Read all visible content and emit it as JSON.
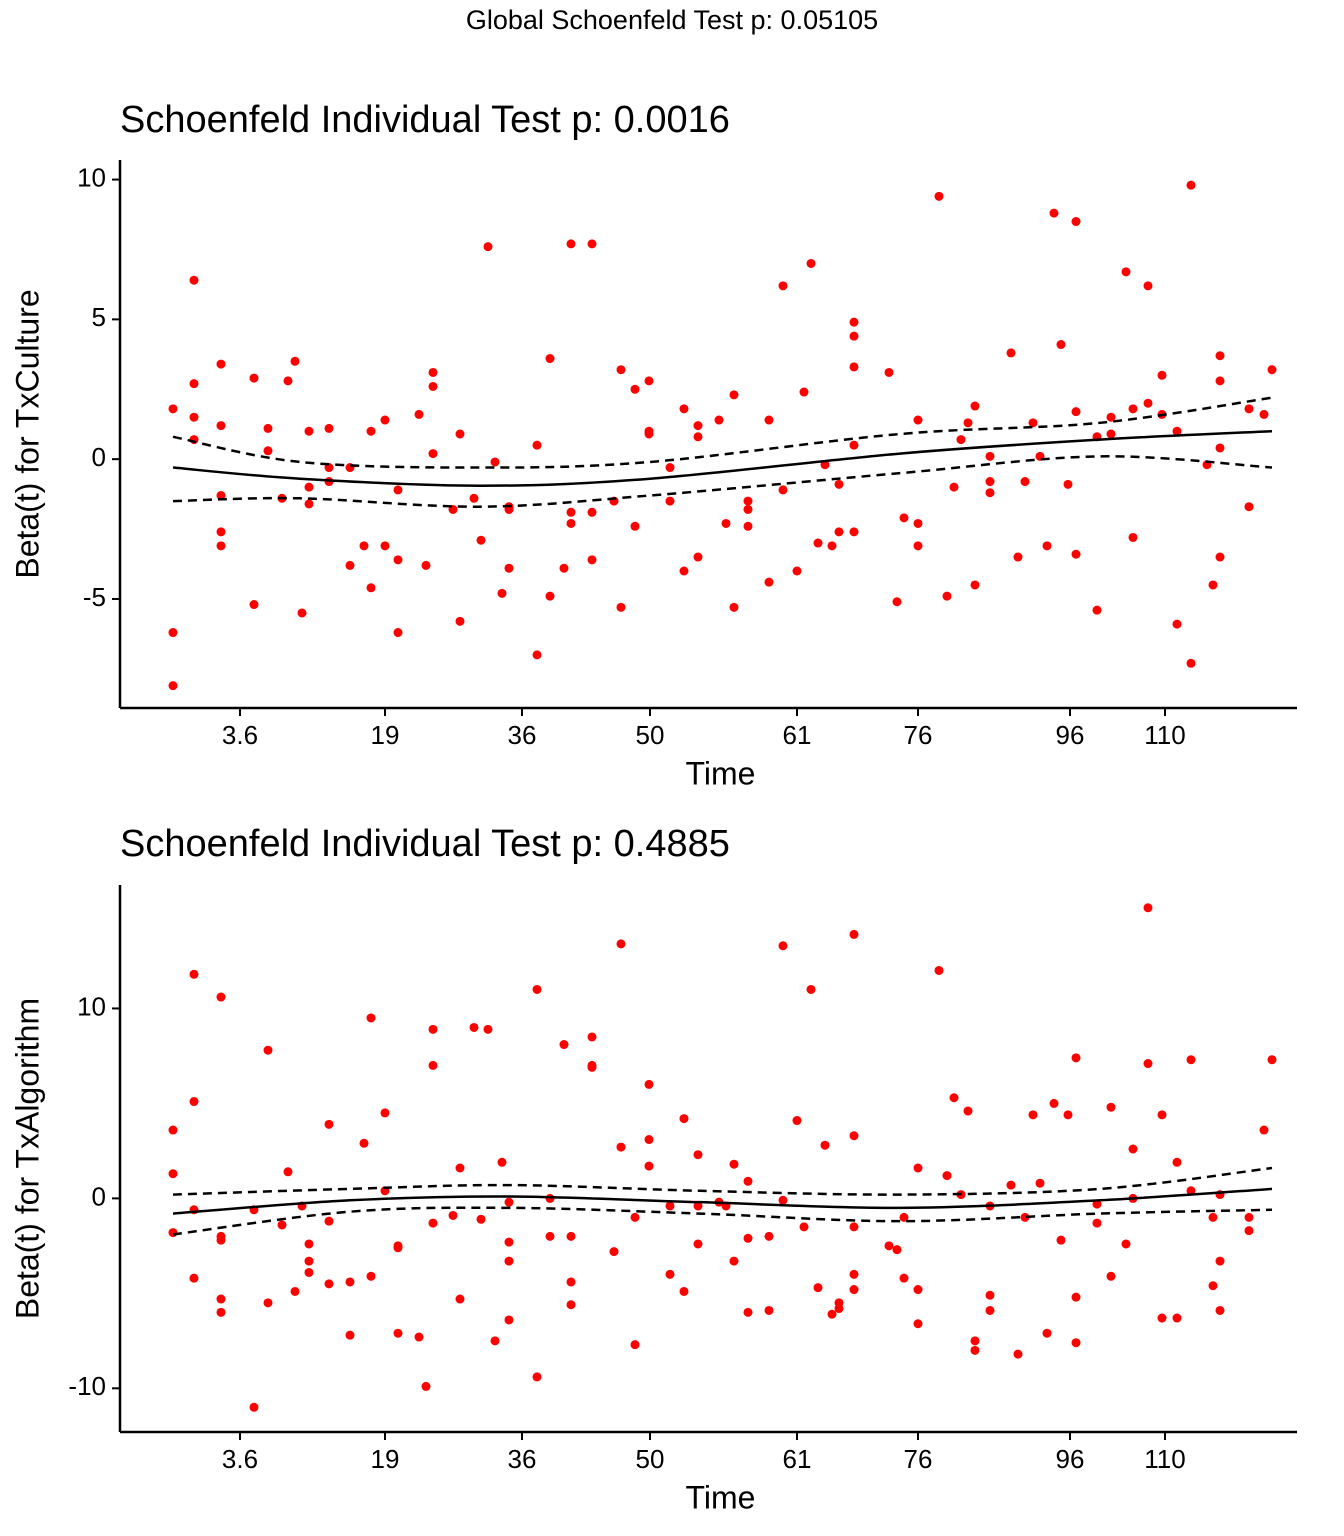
{
  "title": "Global Schoenfeld Test p: 0.05105",
  "chart_data": [
    {
      "type": "scatter",
      "title": "Schoenfeld Individual Test p: 0.0016",
      "xlabel": "Time",
      "ylabel": "Beta(t) for TxCulture",
      "color": "#ff0000",
      "xlim": [
        0,
        117.7
      ],
      "xticks": [
        {
          "value": 12,
          "label": "3.6"
        },
        {
          "value": 26.5,
          "label": "19"
        },
        {
          "value": 40.2,
          "label": "36"
        },
        {
          "value": 53,
          "label": "50"
        },
        {
          "value": 67.7,
          "label": "61"
        },
        {
          "value": 79.8,
          "label": "76"
        },
        {
          "value": 95,
          "label": "96"
        },
        {
          "value": 104.5,
          "label": "110"
        }
      ],
      "ylim": [
        -8.9,
        10.7
      ],
      "yticks": [
        -5,
        0,
        5,
        10
      ],
      "x": [
        5.3,
        7.4,
        10.1,
        13.4,
        14.8,
        16.2,
        16.8,
        17.5,
        18.2,
        18.9,
        20.9,
        23,
        24.4,
        25.1,
        26.5,
        27.8,
        29.9,
        30.6,
        31.3,
        33.3,
        34,
        35.4,
        36.1,
        36.8,
        37.5,
        38.2,
        38.9,
        41.7,
        43,
        44.4,
        45.1,
        47.2,
        49.4,
        50.1,
        51.5,
        52.9,
        55,
        56.4,
        57.8,
        59.9,
        60.6,
        61.4,
        62.8,
        64.9,
        66.3,
        67.7,
        68.4,
        69.1,
        69.8,
        70.5,
        71.2,
        71.9,
        73.4,
        76.9,
        77.7,
        78.4,
        79.8,
        81.9,
        82.7,
        83.4,
        84.1,
        84.8,
        85.5,
        87,
        89.1,
        89.8,
        90.5,
        91.3,
        92,
        92.7,
        93.4,
        94.1,
        94.8,
        95.6,
        97.7,
        99.1,
        100.6,
        101.3,
        102.8,
        104.2,
        105.7,
        107.1,
        108.7,
        109.3,
        110,
        112.9,
        114.4,
        115.2
      ],
      "values": [
        [
          1.8,
          -6.2,
          -8.1
        ],
        [
          6.4,
          2.7,
          1.5,
          0.7
        ],
        [
          3.4,
          1.2,
          -1.3,
          -2.6,
          -3.1
        ],
        [
          2.9,
          -5.2
        ],
        [
          1.1,
          0.3
        ],
        [
          -1.4
        ],
        [
          2.8
        ],
        [
          3.5
        ],
        [
          -5.5
        ],
        [
          1.0,
          -1.0,
          -1.6
        ],
        [
          1.1,
          -0.3,
          -0.8
        ],
        [
          -0.3,
          -3.8
        ],
        [
          -3.1
        ],
        [
          1.0,
          -4.6
        ],
        [
          1.4,
          -3.1
        ],
        [
          -1.1,
          -3.6,
          -6.2
        ],
        [
          1.6
        ],
        [
          -3.8
        ],
        [
          3.1,
          2.6,
          0.2
        ],
        [
          -1.8
        ],
        [
          0.9,
          -5.8
        ],
        [
          -1.4
        ],
        [
          -2.9
        ],
        [
          7.6
        ],
        [
          -0.1
        ],
        [
          -4.8
        ],
        [
          -1.7,
          -1.8,
          -3.9
        ],
        [
          0.5,
          -7.0
        ],
        [
          3.6,
          -4.9
        ],
        [
          -3.9
        ],
        [
          7.7,
          -1.9,
          -2.3
        ],
        [
          7.7,
          -1.9,
          -3.6
        ],
        [
          -1.5
        ],
        [
          3.2,
          -5.3
        ],
        [
          2.5,
          -2.4
        ],
        [
          2.8,
          1.0,
          0.9
        ],
        [
          -0.3,
          -1.5
        ],
        [
          1.8,
          -4.0
        ],
        [
          1.2,
          0.8,
          -3.5
        ],
        [
          1.4
        ],
        [
          -2.3
        ],
        [
          2.3,
          -5.3
        ],
        [
          -1.5,
          -1.8,
          -2.4
        ],
        [
          1.4,
          -4.4
        ],
        [
          6.2,
          -1.1
        ],
        [
          -4.0
        ],
        [
          2.4
        ],
        [
          7.0
        ],
        [
          -3.0
        ],
        [
          -0.2
        ],
        [
          -3.1
        ],
        [
          -0.9,
          -2.6
        ],
        [
          4.9,
          4.4,
          3.3,
          0.5,
          -2.6
        ],
        [
          3.1
        ],
        [
          -5.1
        ],
        [
          -2.1
        ],
        [
          1.4,
          -2.3,
          -3.1
        ],
        [
          9.4
        ],
        [
          -4.9
        ],
        [
          -1.0
        ],
        [
          0.7
        ],
        [
          1.3
        ],
        [
          1.9,
          -4.5
        ],
        [
          0.1,
          -0.8,
          -1.2
        ],
        [
          3.8
        ],
        [
          -3.5
        ],
        [
          -0.8
        ],
        [
          1.3
        ],
        [
          0.1
        ],
        [
          -3.1
        ],
        [
          8.8
        ],
        [
          4.1
        ],
        [
          -0.9
        ],
        [
          8.5,
          1.7,
          -3.4
        ],
        [
          0.8,
          -5.4
        ],
        [
          1.5,
          0.9
        ],
        [
          6.7
        ],
        [
          1.8,
          -2.8
        ],
        [
          6.2,
          2.0
        ],
        [
          3.0,
          1.6
        ],
        [
          1.0,
          -5.9
        ],
        [
          9.8,
          -7.3
        ],
        [
          -0.2
        ],
        [
          -4.5
        ],
        [
          3.7,
          2.8,
          0.4,
          -3.5
        ],
        [
          1.8,
          -1.7
        ],
        [
          1.6
        ],
        [
          3.2
        ]
      ],
      "fit": {
        "x": [
          5.3,
          18,
          36,
          53,
          78,
          98,
          115.2
        ],
        "values": [
          -0.3,
          -0.7,
          -0.95,
          -0.7,
          0.2,
          0.7,
          1.0
        ],
        "upper": [
          0.8,
          -0.1,
          -0.3,
          -0.1,
          0.9,
          1.3,
          2.2
        ],
        "lower": [
          -1.5,
          -1.4,
          -1.7,
          -1.3,
          -0.5,
          0.1,
          -0.3
        ]
      }
    },
    {
      "type": "scatter",
      "title": "Schoenfeld Individual Test p: 0.4885",
      "xlabel": "Time",
      "ylabel": "Beta(t) for TxAlgorithm",
      "color": "#ff0000",
      "xlim": [
        0,
        117.7
      ],
      "xticks": [
        {
          "value": 12,
          "label": "3.6"
        },
        {
          "value": 26.5,
          "label": "19"
        },
        {
          "value": 40.2,
          "label": "36"
        },
        {
          "value": 53,
          "label": "50"
        },
        {
          "value": 67.7,
          "label": "61"
        },
        {
          "value": 79.8,
          "label": "76"
        },
        {
          "value": 95,
          "label": "96"
        },
        {
          "value": 104.5,
          "label": "110"
        }
      ],
      "ylim": [
        -12.3,
        16.5
      ],
      "yticks": [
        -10,
        0,
        10
      ],
      "x": [
        5.3,
        7.4,
        10.1,
        13.4,
        14.8,
        16.2,
        16.8,
        17.5,
        18.2,
        18.9,
        20.9,
        23,
        24.4,
        25.1,
        26.5,
        27.8,
        29.9,
        30.6,
        31.3,
        33.3,
        34,
        35.4,
        36.1,
        36.8,
        37.5,
        38.2,
        38.9,
        41.7,
        43,
        44.4,
        45.1,
        47.2,
        49.4,
        50.1,
        51.5,
        52.9,
        55,
        56.4,
        57.8,
        59.9,
        60.6,
        61.4,
        62.8,
        64.9,
        66.3,
        67.7,
        68.4,
        69.1,
        69.8,
        70.5,
        71.2,
        71.9,
        73.4,
        76.9,
        77.7,
        78.4,
        79.8,
        81.9,
        82.7,
        83.4,
        84.1,
        84.8,
        85.5,
        87,
        89.1,
        89.8,
        90.5,
        91.3,
        92,
        92.7,
        93.4,
        94.1,
        94.8,
        95.6,
        97.7,
        99.1,
        100.6,
        101.3,
        102.8,
        104.2,
        105.7,
        107.1,
        109.3,
        110,
        112.9,
        114.4,
        115.2
      ],
      "values": [
        [
          3.6,
          1.3,
          -1.8
        ],
        [
          11.8,
          5.1,
          -0.6,
          -4.2
        ],
        [
          10.6,
          -2.0,
          -2.2,
          -5.3,
          -6.0
        ],
        [
          -0.6,
          -11.0
        ],
        [
          7.8,
          -5.5
        ],
        [
          -1.4
        ],
        [
          1.4
        ],
        [
          -4.9
        ],
        [
          -0.4
        ],
        [
          -2.4,
          -3.3,
          -3.9
        ],
        [
          3.9,
          -1.2,
          -4.5
        ],
        [
          -4.4,
          -7.2
        ],
        [
          2.9
        ],
        [
          9.5,
          -4.1
        ],
        [
          4.5,
          0.4
        ],
        [
          -2.6,
          -2.5,
          -7.1
        ],
        [
          -7.3
        ],
        [
          -9.9
        ],
        [
          8.9,
          7.0,
          -1.3
        ],
        [
          -0.9
        ],
        [
          1.6,
          -5.3
        ],
        [
          9.0
        ],
        [
          -1.1
        ],
        [
          8.9
        ],
        [
          -7.5
        ],
        [
          1.9
        ],
        [
          -0.2,
          -2.3,
          -3.3,
          -6.4
        ],
        [
          11.0,
          -9.4
        ],
        [
          0.0,
          -2.0
        ],
        [
          8.1
        ],
        [
          -2.0,
          -4.4,
          -5.6
        ],
        [
          8.5,
          6.9,
          7.0
        ],
        [
          -2.8
        ],
        [
          13.4,
          2.7
        ],
        [
          -1.0,
          -7.7
        ],
        [
          6.0,
          3.1,
          1.7
        ],
        [
          -4.0,
          -0.4
        ],
        [
          4.2,
          -4.9
        ],
        [
          2.3,
          -0.4,
          -2.4
        ],
        [
          -0.2
        ],
        [
          -0.4
        ],
        [
          1.8,
          -3.3
        ],
        [
          0.9,
          -2.1,
          -6.0
        ],
        [
          -2.0,
          -5.9
        ],
        [
          13.3,
          -0.1
        ],
        [
          4.1
        ],
        [
          -1.5
        ],
        [
          11.0
        ],
        [
          -4.7
        ],
        [
          2.8
        ],
        [
          -6.1
        ],
        [
          -5.5,
          -5.8
        ],
        [
          13.9,
          3.3,
          -1.5,
          -4.0,
          -4.8
        ],
        [
          -2.5
        ],
        [
          -2.7
        ],
        [
          -1.0,
          -4.2
        ],
        [
          1.6,
          -4.8,
          -6.6
        ],
        [
          12.0
        ],
        [
          1.2
        ],
        [
          5.3
        ],
        [
          0.2
        ],
        [
          4.6
        ],
        [
          -7.5,
          -8.0
        ],
        [
          -0.4,
          -5.1,
          -5.9
        ],
        [
          0.7
        ],
        [
          -8.2
        ],
        [
          -1.0
        ],
        [
          4.4
        ],
        [
          0.8
        ],
        [
          -7.1
        ],
        [
          5.0
        ],
        [
          -2.2
        ],
        [
          4.4
        ],
        [
          7.4,
          -5.2,
          -7.6
        ],
        [
          -0.3,
          -1.3
        ],
        [
          4.8,
          -4.1
        ],
        [
          -2.4
        ],
        [
          2.6,
          0.0
        ],
        [
          15.3,
          7.1
        ],
        [
          4.4,
          -6.3
        ],
        [
          1.9,
          -6.3
        ],
        [
          7.3,
          0.4
        ],
        [
          -1.0,
          -4.6
        ],
        [
          0.2,
          -3.3,
          -5.9
        ],
        [
          -1.0,
          -1.7
        ],
        [
          3.6
        ],
        [
          7.3
        ]
      ],
      "fit": {
        "x": [
          5.3,
          23,
          39,
          58,
          78,
          98,
          115.2
        ],
        "values": [
          -0.8,
          -0.1,
          0.1,
          -0.2,
          -0.5,
          -0.1,
          0.5
        ],
        "upper": [
          0.2,
          0.5,
          0.7,
          0.4,
          0.2,
          0.5,
          1.6
        ],
        "lower": [
          -1.9,
          -0.7,
          -0.5,
          -0.8,
          -1.2,
          -0.8,
          -0.6
        ]
      }
    }
  ]
}
